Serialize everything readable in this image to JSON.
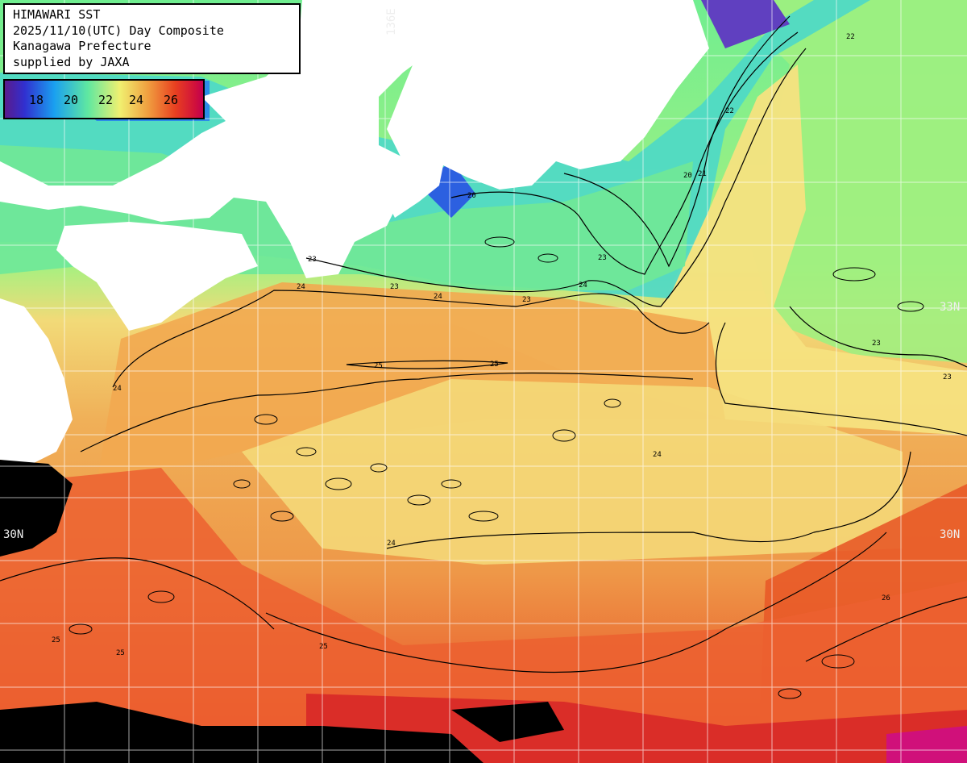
{
  "info": {
    "line1": "HIMAWARI SST",
    "line2": "2025/11/10(UTC) Day Composite",
    "line3": "Kanagawa Prefecture",
    "line4": "supplied by JAXA"
  },
  "legend": {
    "ticks": [
      "18",
      "20",
      "22",
      "24",
      "26"
    ]
  },
  "grid_labels": {
    "lon_top": "136E",
    "lat_right_upper": "33N",
    "lat_left_lower": "30N",
    "lat_right_lower": "30N"
  },
  "contour_labels": [
    "20",
    "21",
    "22",
    "23",
    "24",
    "25",
    "26"
  ],
  "colors": {
    "land": "#ffffff",
    "no_data": "#000000",
    "cold": "#1a6ee0",
    "cool": "#60e890",
    "mild": "#f0e070",
    "warm": "#f0a040",
    "hot": "#e84020",
    "hottest": "#d0103c"
  }
}
